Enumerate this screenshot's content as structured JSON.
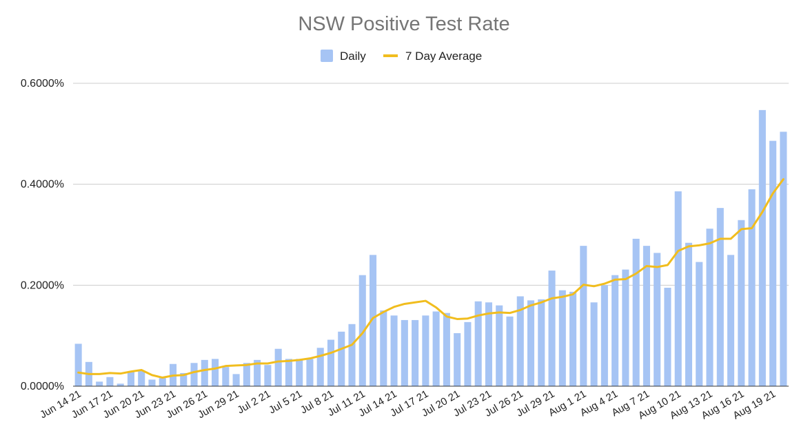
{
  "chart_data": {
    "type": "bar",
    "title": "NSW Positive Test Rate",
    "xlabel": "",
    "ylabel": "",
    "ylim": [
      0,
      0.6
    ],
    "y_unit": "%",
    "y_ticks": [
      0,
      0.2,
      0.4,
      0.6
    ],
    "y_tick_labels": [
      "0.0000%",
      "0.2000%",
      "0.4000%",
      "0.6000%"
    ],
    "grid": true,
    "legend_position": "top",
    "colors": {
      "bar": "#a6c4f4",
      "line": "#f1bd1e",
      "grid": "#cccccc",
      "axis": "#333333"
    },
    "x_tick_labels": [
      "Jun 14 21",
      "Jun 17 21",
      "Jun 20 21",
      "Jun 23 21",
      "Jun 26 21",
      "Jun 29 21",
      "Jul 2 21",
      "Jul 5 21",
      "Jul 8 21",
      "Jul 11 21",
      "Jul 14 21",
      "Jul 17 21",
      "Jul 20 21",
      "Jul 23 21",
      "Jul 26 21",
      "Jul 29 21",
      "Aug 1 21",
      "Aug 4 21",
      "Aug 7 21",
      "Aug 10 21",
      "Aug 13 21",
      "Aug 16 21",
      "Aug 19 21"
    ],
    "x_tick_every": 3,
    "series": [
      {
        "name": "Daily",
        "type": "bar",
        "values": [
          0.084,
          0.048,
          0.009,
          0.018,
          0.005,
          0.028,
          0.031,
          0.013,
          0.016,
          0.044,
          0.026,
          0.046,
          0.052,
          0.054,
          0.038,
          0.024,
          0.046,
          0.052,
          0.042,
          0.074,
          0.054,
          0.054,
          0.054,
          0.076,
          0.092,
          0.108,
          0.123,
          0.22,
          0.26,
          0.15,
          0.14,
          0.131,
          0.131,
          0.14,
          0.148,
          0.145,
          0.105,
          0.127,
          0.168,
          0.166,
          0.16,
          0.138,
          0.178,
          0.17,
          0.172,
          0.229,
          0.19,
          0.187,
          0.278,
          0.166,
          0.2,
          0.22,
          0.231,
          0.292,
          0.278,
          0.264,
          0.195,
          0.386,
          0.284,
          0.246,
          0.312,
          0.353,
          0.26,
          0.329,
          0.39,
          0.547,
          0.486,
          0.504
        ]
      },
      {
        "name": "7 Day Average",
        "type": "line",
        "values": [
          0.027,
          0.024,
          0.024,
          0.026,
          0.025,
          0.029,
          0.032,
          0.022,
          0.017,
          0.021,
          0.022,
          0.028,
          0.032,
          0.035,
          0.04,
          0.041,
          0.042,
          0.045,
          0.045,
          0.049,
          0.05,
          0.052,
          0.055,
          0.06,
          0.066,
          0.074,
          0.082,
          0.105,
          0.135,
          0.147,
          0.157,
          0.163,
          0.166,
          0.169,
          0.156,
          0.138,
          0.133,
          0.134,
          0.14,
          0.144,
          0.146,
          0.145,
          0.151,
          0.16,
          0.166,
          0.174,
          0.177,
          0.182,
          0.201,
          0.198,
          0.203,
          0.211,
          0.212,
          0.223,
          0.238,
          0.236,
          0.24,
          0.268,
          0.277,
          0.279,
          0.283,
          0.292,
          0.292,
          0.311,
          0.313,
          0.345,
          0.382,
          0.41
        ]
      }
    ]
  }
}
